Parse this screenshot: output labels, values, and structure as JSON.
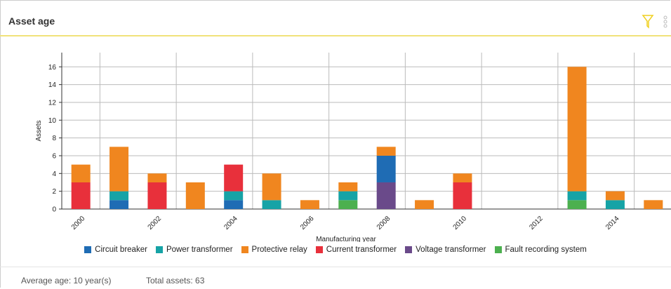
{
  "chart_data": {
    "type": "stacked_bar",
    "title": "Asset age",
    "xlabel": "Manufacturing year",
    "ylabel": "Assets",
    "categories": [
      "2000",
      null,
      "2002",
      null,
      "2004",
      null,
      "2006",
      null,
      "2008",
      null,
      "2010",
      null,
      "2012",
      null,
      "2014",
      null
    ],
    "series": [
      {
        "name": "Circuit breaker",
        "color": "#1f6cb4",
        "values": [
          0,
          1,
          0,
          0,
          1,
          0,
          0,
          0,
          3,
          0,
          0,
          0,
          0,
          0,
          0,
          0
        ]
      },
      {
        "name": "Power transformer",
        "color": "#16a3a6",
        "values": [
          0,
          1,
          0,
          0,
          1,
          1,
          0,
          1,
          0,
          0,
          0,
          0,
          0,
          1,
          1,
          0
        ]
      },
      {
        "name": "Protective relay",
        "color": "#f0861f",
        "values": [
          2,
          5,
          1,
          3,
          0,
          3,
          1,
          1,
          1,
          1,
          1,
          0,
          0,
          14,
          1,
          1
        ]
      },
      {
        "name": "Current transformer",
        "color": "#e8303b",
        "values": [
          3,
          0,
          3,
          0,
          3,
          0,
          0,
          0,
          0,
          0,
          3,
          0,
          0,
          0,
          0,
          0
        ]
      },
      {
        "name": "Voltage transformer",
        "color": "#6a4a8a",
        "values": [
          0,
          0,
          0,
          0,
          0,
          0,
          0,
          0,
          3,
          0,
          0,
          0,
          0,
          0,
          0,
          0
        ]
      },
      {
        "name": "Fault recording system",
        "color": "#4cb04f",
        "values": [
          0,
          0,
          0,
          0,
          0,
          0,
          0,
          1,
          0,
          0,
          0,
          0,
          0,
          1,
          0,
          0
        ]
      }
    ],
    "ylim": [
      0,
      17.6
    ],
    "yticks": [
      0,
      2,
      4,
      6,
      8,
      10,
      12,
      14,
      16
    ],
    "grid": true
  },
  "footer": [
    "Average age: 10 year(s)",
    "Total assets: 63"
  ]
}
